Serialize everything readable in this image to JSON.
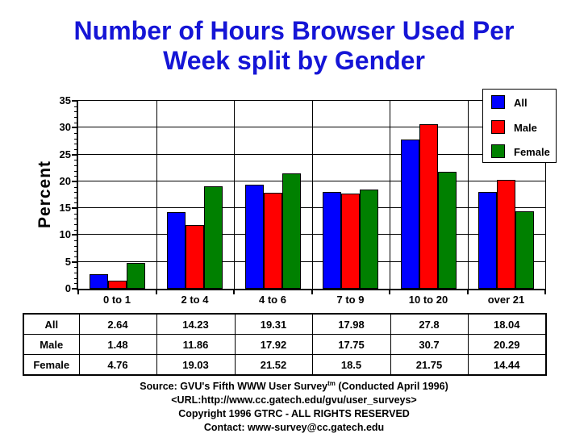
{
  "title": {
    "line1": "Number of Hours Browser Used Per",
    "line2": "Week split by Gender"
  },
  "chart_data": {
    "type": "bar",
    "title": "Number of Hours Browser Used Per Week split by Gender",
    "xlabel": "",
    "ylabel": "Percent",
    "ylim": [
      0,
      35
    ],
    "yticks": [
      35,
      30,
      25,
      20,
      15,
      10,
      5,
      0
    ],
    "grid": true,
    "legend_position": "top-right",
    "categories": [
      "0 to 1",
      "2 to 4",
      "4 to 6",
      "7 to 9",
      "10 to 20",
      "over 21"
    ],
    "series": [
      {
        "name": "All",
        "color": "#0000ff",
        "values": [
          2.64,
          14.23,
          19.31,
          17.98,
          27.8,
          18.04
        ]
      },
      {
        "name": "Male",
        "color": "#ff0000",
        "values": [
          1.48,
          11.86,
          17.92,
          17.75,
          30.7,
          20.29
        ]
      },
      {
        "name": "Female",
        "color": "#008000",
        "values": [
          4.76,
          19.03,
          21.52,
          18.5,
          21.75,
          14.44
        ]
      }
    ]
  },
  "table": {
    "rows": [
      {
        "label": "All",
        "values": [
          "2.64",
          "14.23",
          "19.31",
          "17.98",
          "27.8",
          "18.04"
        ]
      },
      {
        "label": "Male",
        "values": [
          "1.48",
          "11.86",
          "17.92",
          "17.75",
          "30.7",
          "20.29"
        ]
      },
      {
        "label": "Female",
        "values": [
          "4.76",
          "19.03",
          "21.52",
          "18.5",
          "21.75",
          "14.44"
        ]
      }
    ]
  },
  "footer": {
    "source_prefix": "Source: GVU's Fifth WWW User Survey",
    "source_sup": "tm",
    "source_suffix": " (Conducted April 1996)",
    "url": "<URL:http://www.cc.gatech.edu/gvu/user_surveys>",
    "copyright": "Copyright 1996 GTRC -  ALL RIGHTS RESERVED",
    "contact": "Contact: www-survey@cc.gatech.edu"
  },
  "colors": {
    "title_blue": "#1515d6",
    "bar_all": "#0000ff",
    "bar_male": "#ff0000",
    "bar_female": "#008000"
  }
}
